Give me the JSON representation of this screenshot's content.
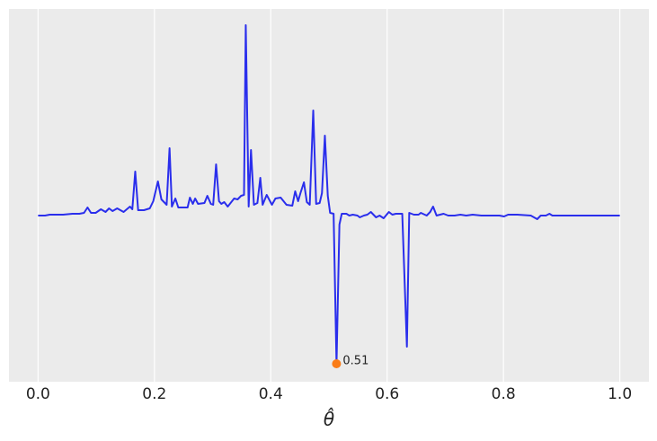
{
  "chart_data": {
    "type": "line",
    "x_label": "θ̂",
    "xlim": [
      -0.05,
      1.05
    ],
    "ylim": [
      -0.185,
      0.23
    ],
    "xticks": [
      {
        "value": 0,
        "label": "0.0"
      },
      0.2,
      0.4,
      0.6,
      0.8,
      {
        "value": 1,
        "label": "1.0"
      }
    ],
    "grid": true,
    "series": [
      {
        "color": "#2a2eec",
        "x": [
          0,
          0.012,
          0.02,
          0.043,
          0.059,
          0.071,
          0.079,
          0.085,
          0.091,
          0.099,
          0.108,
          0.116,
          0.122,
          0.128,
          0.136,
          0.147,
          0.158,
          0.162,
          0.167,
          0.172,
          0.182,
          0.192,
          0.198,
          0.206,
          0.212,
          0.221,
          0.226,
          0.23,
          0.236,
          0.241,
          0.257,
          0.261,
          0.266,
          0.27,
          0.275,
          0.286,
          0.291,
          0.297,
          0.301,
          0.306,
          0.311,
          0.315,
          0.32,
          0.326,
          0.337,
          0.343,
          0.349,
          0.354,
          0.357,
          0.362,
          0.366,
          0.371,
          0.377,
          0.382,
          0.386,
          0.393,
          0.402,
          0.408,
          0.417,
          0.427,
          0.437,
          0.442,
          0.447,
          0.451,
          0.457,
          0.462,
          0.467,
          0.473,
          0.478,
          0.484,
          0.488,
          0.493,
          0.498,
          0.502,
          0.508,
          0.513,
          0.518,
          0.522,
          0.53,
          0.535,
          0.541,
          0.549,
          0.553,
          0.56,
          0.566,
          0.572,
          0.581,
          0.587,
          0.594,
          0.603,
          0.609,
          0.615,
          0.626,
          0.634,
          0.638,
          0.646,
          0.654,
          0.658,
          0.668,
          0.674,
          0.679,
          0.685,
          0.697,
          0.705,
          0.716,
          0.726,
          0.736,
          0.747,
          0.762,
          0.777,
          0.793,
          0.801,
          0.808,
          0.824,
          0.847,
          0.858,
          0.864,
          0.873,
          0.879,
          0.884,
          0.901,
          0.94,
          1
        ],
        "values": [
          0,
          0,
          0.001,
          0.001,
          0.002,
          0.002,
          0.003,
          0.009,
          0.003,
          0.003,
          0.007,
          0.004,
          0.008,
          0.005,
          0.008,
          0.004,
          0.01,
          0.007,
          0.049,
          0.006,
          0.006,
          0.008,
          0.016,
          0.038,
          0.018,
          0.012,
          0.075,
          0.01,
          0.019,
          0.009,
          0.009,
          0.02,
          0.013,
          0.019,
          0.013,
          0.014,
          0.022,
          0.013,
          0.012,
          0.057,
          0.016,
          0.013,
          0.015,
          0.01,
          0.019,
          0.018,
          0.022,
          0.023,
          0.212,
          0.01,
          0.073,
          0.012,
          0.014,
          0.042,
          0.012,
          0.023,
          0.012,
          0.019,
          0.02,
          0.012,
          0.011,
          0.027,
          0.016,
          0.025,
          0.037,
          0.015,
          0.012,
          0.117,
          0.013,
          0.014,
          0.025,
          0.089,
          0.022,
          0.003,
          0.002,
          -0.165,
          -0.01,
          0.002,
          0.002,
          0,
          0.001,
          0,
          -0.002,
          0,
          0.001,
          0.004,
          -0.002,
          0,
          -0.003,
          0.004,
          0.001,
          0.002,
          0.002,
          -0.146,
          0.003,
          0.001,
          0.001,
          0.003,
          0,
          0.004,
          0.01,
          0,
          0.002,
          0,
          0,
          0.001,
          0,
          0.001,
          0,
          0,
          0,
          -0.001,
          0.001,
          0.001,
          0,
          -0.004,
          0,
          0,
          0.002,
          0,
          0,
          0,
          0
        ]
      }
    ],
    "marker": {
      "x": 0.513,
      "y": -0.165,
      "label": "0.51",
      "color": "#fa7c17"
    }
  }
}
